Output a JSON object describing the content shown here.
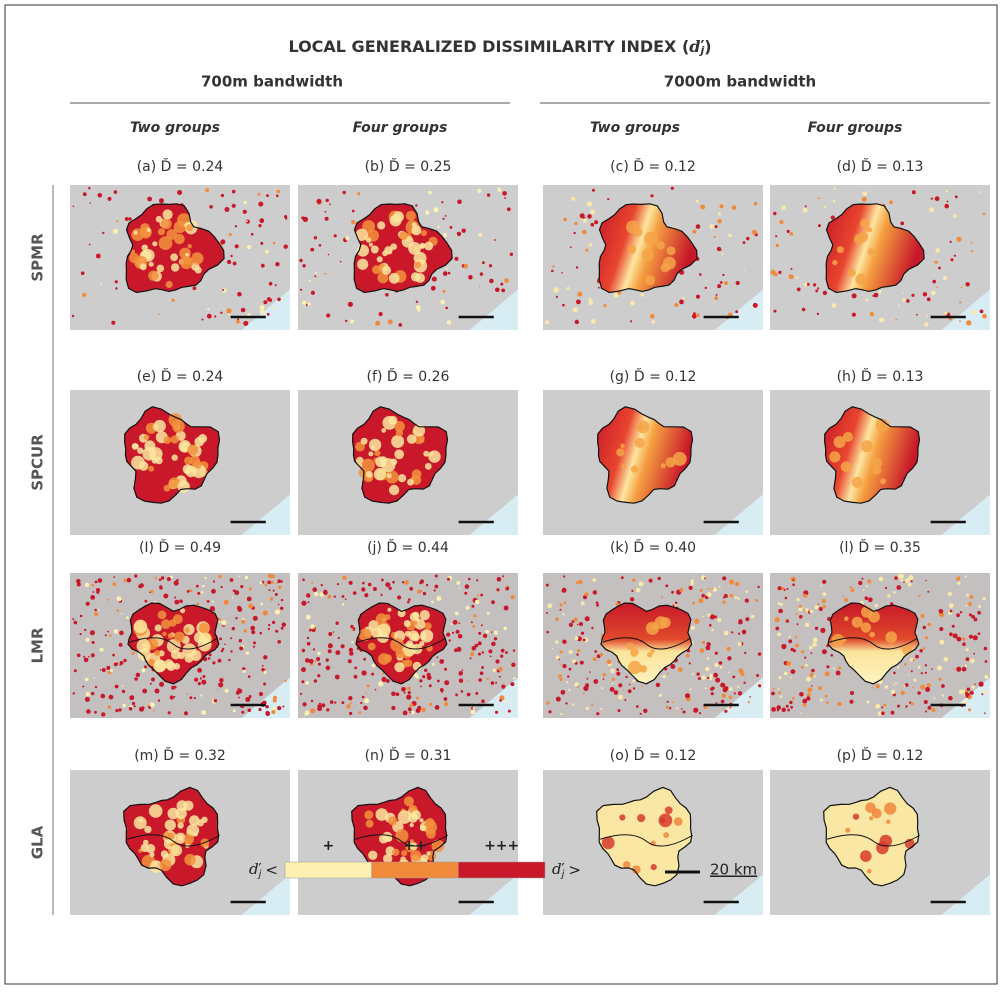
{
  "title": {
    "text": "LOCAL GENERALIZED DISSIMILARITY INDEX (",
    "symbol": "ď",
    "subscript": "j",
    "close": ")"
  },
  "bandwidths": [
    "700m bandwidth",
    "7000m bandwidth"
  ],
  "group_headings": [
    "Two groups",
    "Four groups",
    "Two groups",
    "Four groups"
  ],
  "rows": [
    {
      "label": "SPMR",
      "panels": [
        "(a) D̆ = 0.24",
        "(b) D̆ = 0.25",
        "(c) D̆ = 0.12",
        "(d) D̆ = 0.13"
      ]
    },
    {
      "label": "SPCUR",
      "panels": [
        "(e) D̆ = 0.24",
        "(f) D̆ = 0.26",
        "(g) D̆ = 0.12",
        "(h) D̆ = 0.13"
      ]
    },
    {
      "label": "LMR",
      "panels": [
        "(I) D̆ = 0.49",
        "(j) D̆ = 0.44",
        "(k) D̆ = 0.40",
        "(l) D̆ = 0.35"
      ]
    },
    {
      "label": "GLA",
      "panels": [
        "(m) D̆ = 0.32",
        "(n) D̆ = 0.31",
        "(o) D̆ = 0.12",
        "(p) D̆ = 0.12"
      ]
    }
  ],
  "legend": {
    "symbol": "ď",
    "subscript": "j",
    "low": "<",
    "high": ">",
    "levels": [
      "+",
      "++",
      "+++"
    ],
    "colors": [
      "#fdf0b0",
      "#f08a3a",
      "#c8182a"
    ],
    "scale_label": "20 km"
  }
}
